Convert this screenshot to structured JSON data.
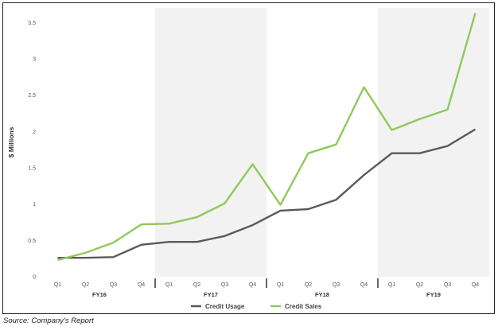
{
  "chart_data": {
    "type": "line",
    "title": "",
    "xlabel": "",
    "ylabel": "$ Millions",
    "ylim": [
      0,
      3.7
    ],
    "yticks": [
      0,
      0.5,
      1,
      1.5,
      2,
      2.5,
      3,
      3.5
    ],
    "categories": [
      "Q1",
      "Q2",
      "Q3",
      "Q4",
      "Q1",
      "Q2",
      "Q3",
      "Q4",
      "Q1",
      "Q2",
      "Q3",
      "Q4",
      "Q1",
      "Q2",
      "Q3",
      "Q4"
    ],
    "groups": [
      {
        "label": "FY16",
        "shaded": false
      },
      {
        "label": "FY17",
        "shaded": true
      },
      {
        "label": "FY18",
        "shaded": false
      },
      {
        "label": "FY19",
        "shaded": true
      }
    ],
    "series": [
      {
        "name": "Credit Usage",
        "color": "#595959",
        "values": [
          0.26,
          0.26,
          0.27,
          0.44,
          0.48,
          0.48,
          0.56,
          0.71,
          0.91,
          0.93,
          1.06,
          1.4,
          1.7,
          1.7,
          1.8,
          2.03
        ]
      },
      {
        "name": "Credit Sales",
        "color": "#8fc95a",
        "values": [
          0.23,
          0.33,
          0.47,
          0.72,
          0.73,
          0.82,
          1.01,
          1.55,
          0.99,
          1.7,
          1.82,
          2.61,
          2.02,
          2.17,
          2.3,
          3.63
        ]
      }
    ],
    "grid": false,
    "legend_position": "bottom-center"
  },
  "source_note": "Source: Company's Report"
}
